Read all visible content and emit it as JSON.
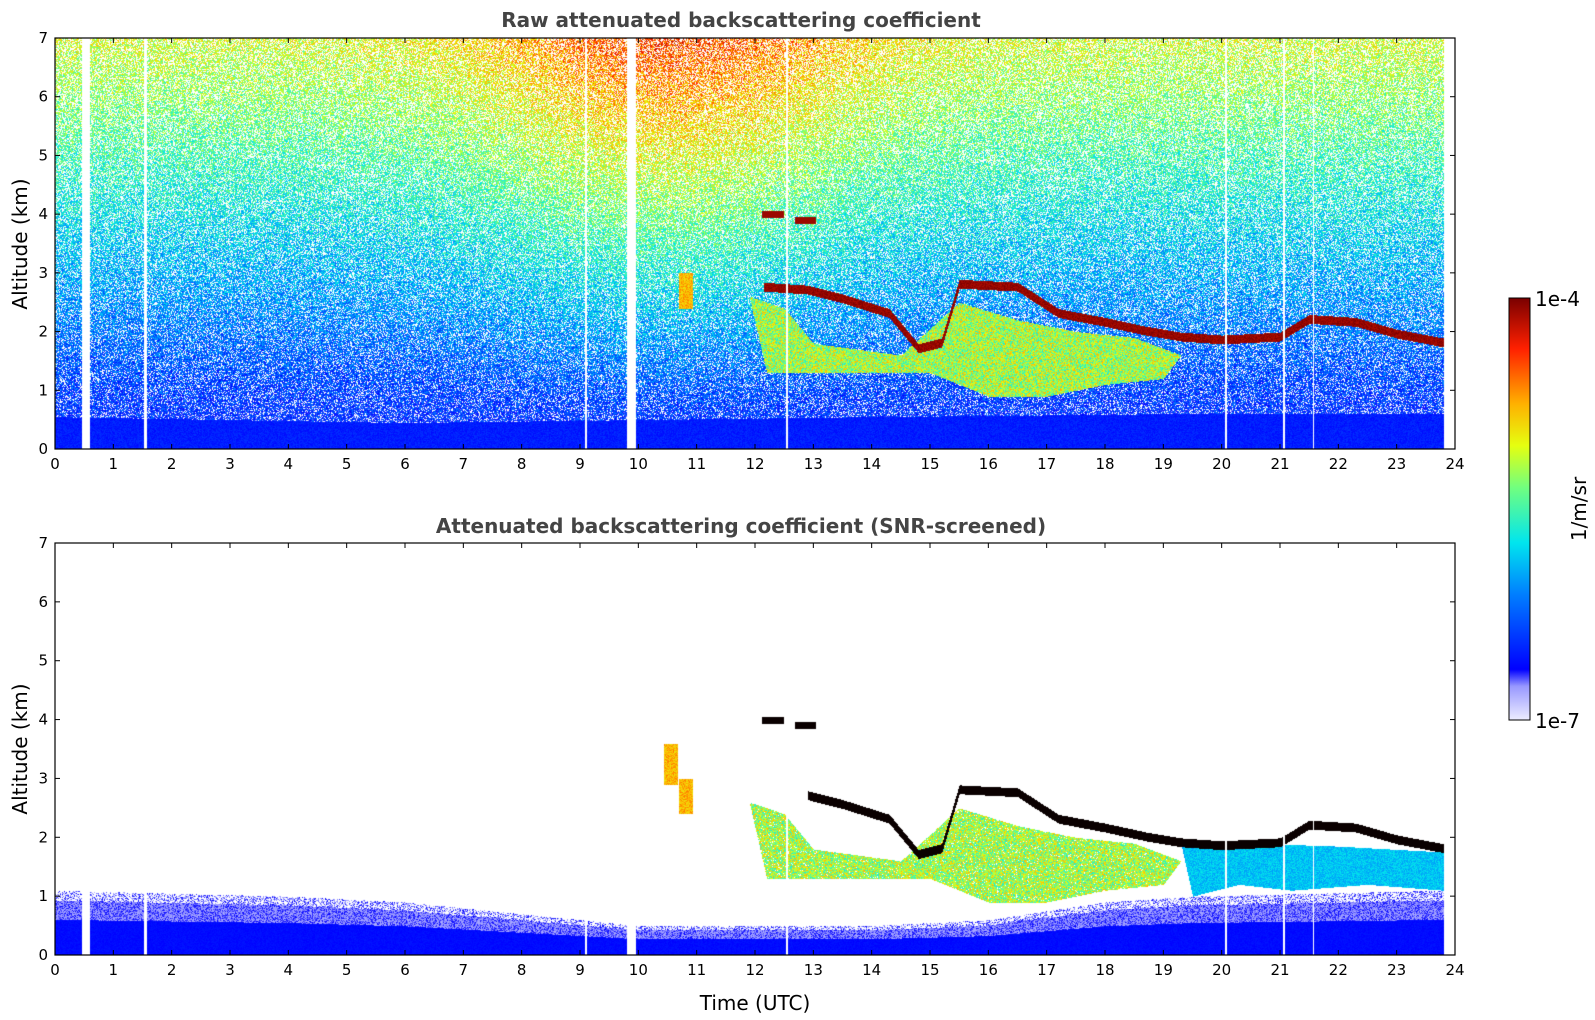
{
  "chart_data": [
    {
      "type": "heatmap",
      "title": "Raw attenuated backscattering coefficient",
      "xlabel": "",
      "ylabel": "Altitude (km)",
      "xlim": [
        0,
        24
      ],
      "ylim": [
        0,
        7
      ],
      "x_ticks": [
        "0",
        "1",
        "2",
        "3",
        "4",
        "5",
        "6",
        "7",
        "8",
        "9",
        "10",
        "11",
        "12",
        "13",
        "14",
        "15",
        "16",
        "17",
        "18",
        "19",
        "20",
        "21",
        "22",
        "23",
        "24"
      ],
      "y_ticks": [
        "0",
        "1",
        "2",
        "3",
        "4",
        "5",
        "6",
        "7"
      ],
      "data_end_hour": 23.8,
      "noise": "high",
      "background": "aerosol/noise gradient from blue near surface to yellow-red aloft",
      "gaps_hours": [
        {
          "start": 0.45,
          "end": 0.6
        },
        {
          "start": 9.8,
          "end": 9.95
        },
        {
          "start": 1.52,
          "end": 1.56
        },
        {
          "start": 9.08,
          "end": 9.11
        },
        {
          "start": 12.52,
          "end": 12.55
        },
        {
          "start": 20.05,
          "end": 20.08
        },
        {
          "start": 21.05,
          "end": 21.08
        },
        {
          "start": 21.55,
          "end": 21.58
        }
      ],
      "boundary_layer_top_km": [
        [
          0,
          0.55
        ],
        [
          6,
          0.45
        ],
        [
          10,
          0.5
        ],
        [
          14,
          0.55
        ],
        [
          19,
          0.6
        ],
        [
          23.8,
          0.6
        ]
      ],
      "cloud_layer": [
        [
          12.15,
          2.75
        ],
        [
          12.9,
          2.7
        ],
        [
          13.5,
          2.55
        ],
        [
          14.3,
          2.3
        ],
        [
          14.8,
          1.7
        ],
        [
          15.2,
          1.8
        ],
        [
          15.5,
          2.8
        ],
        [
          16.5,
          2.75
        ],
        [
          17.2,
          2.3
        ],
        [
          18,
          2.15
        ],
        [
          18.7,
          2.0
        ],
        [
          19.3,
          1.9
        ],
        [
          20,
          1.85
        ],
        [
          21,
          1.9
        ],
        [
          21.5,
          2.2
        ],
        [
          22.3,
          2.15
        ],
        [
          23.0,
          1.95
        ],
        [
          23.8,
          1.8
        ]
      ],
      "cloud_fragments": [
        {
          "x": 12.3,
          "y": 4.0
        },
        {
          "x": 12.85,
          "y": 3.9
        }
      ],
      "precip_region": [
        [
          11.9,
          2.6
        ],
        [
          12.5,
          2.4
        ],
        [
          13,
          1.8
        ],
        [
          14.5,
          1.6
        ],
        [
          15.5,
          2.5
        ],
        [
          16.5,
          2.2
        ],
        [
          17.5,
          2.0
        ],
        [
          18.5,
          1.9
        ],
        [
          19.3,
          1.6
        ],
        [
          19.0,
          1.2
        ],
        [
          18,
          1.1
        ],
        [
          17,
          0.9
        ],
        [
          16,
          0.9
        ],
        [
          15,
          1.3
        ],
        [
          13,
          1.3
        ],
        [
          12.2,
          1.3
        ]
      ],
      "virga": [
        {
          "x": 10.8,
          "y0": 2.4,
          "y1": 3.0
        }
      ]
    },
    {
      "type": "heatmap",
      "title": "Attenuated backscattering coefficient (SNR-screened)",
      "xlabel": "Time (UTC)",
      "ylabel": "Altitude (km)",
      "xlim": [
        0,
        24
      ],
      "ylim": [
        0,
        7
      ],
      "x_ticks": [
        "0",
        "1",
        "2",
        "3",
        "4",
        "5",
        "6",
        "7",
        "8",
        "9",
        "10",
        "11",
        "12",
        "13",
        "14",
        "15",
        "16",
        "17",
        "18",
        "19",
        "20",
        "21",
        "22",
        "23",
        "24"
      ],
      "y_ticks": [
        "0",
        "1",
        "2",
        "3",
        "4",
        "5",
        "6",
        "7"
      ],
      "data_end_hour": 23.8,
      "noise": "screened",
      "background": "white where signal-to-noise is low",
      "gaps_hours": [
        {
          "start": 0.45,
          "end": 0.6
        },
        {
          "start": 9.8,
          "end": 9.95
        },
        {
          "start": 1.52,
          "end": 1.56
        },
        {
          "start": 9.08,
          "end": 9.11
        },
        {
          "start": 12.52,
          "end": 12.55
        },
        {
          "start": 20.05,
          "end": 20.08
        },
        {
          "start": 21.05,
          "end": 21.08
        },
        {
          "start": 21.55,
          "end": 21.58
        }
      ],
      "boundary_layer_top_km": [
        [
          0,
          1.1
        ],
        [
          2,
          1.05
        ],
        [
          4,
          1.0
        ],
        [
          6,
          0.9
        ],
        [
          8,
          0.7
        ],
        [
          9.5,
          0.55
        ],
        [
          10,
          0.5
        ],
        [
          14,
          0.5
        ],
        [
          16,
          0.6
        ],
        [
          18,
          0.9
        ],
        [
          19.5,
          1.0
        ],
        [
          23.8,
          1.1
        ]
      ],
      "cloud_layer": [
        [
          12.9,
          2.7
        ],
        [
          13.5,
          2.55
        ],
        [
          14.3,
          2.3
        ],
        [
          14.8,
          1.7
        ],
        [
          15.2,
          1.8
        ],
        [
          15.5,
          2.8
        ],
        [
          16.5,
          2.75
        ],
        [
          17.2,
          2.3
        ],
        [
          18,
          2.15
        ],
        [
          18.7,
          2.0
        ],
        [
          19.3,
          1.9
        ],
        [
          20,
          1.85
        ],
        [
          21,
          1.9
        ],
        [
          21.5,
          2.2
        ],
        [
          22.3,
          2.15
        ],
        [
          23.0,
          1.95
        ],
        [
          23.8,
          1.8
        ]
      ],
      "cloud_fragments": [
        {
          "x": 12.3,
          "y": 4.0
        },
        {
          "x": 12.85,
          "y": 3.9
        }
      ],
      "precip_region": [
        [
          11.9,
          2.6
        ],
        [
          12.5,
          2.4
        ],
        [
          13,
          1.8
        ],
        [
          14.5,
          1.6
        ],
        [
          15.5,
          2.5
        ],
        [
          16.5,
          2.2
        ],
        [
          17.5,
          2.0
        ],
        [
          18.5,
          1.9
        ],
        [
          19.3,
          1.6
        ],
        [
          19.0,
          1.2
        ],
        [
          18,
          1.1
        ],
        [
          17,
          0.9
        ],
        [
          16,
          0.9
        ],
        [
          15,
          1.3
        ],
        [
          13,
          1.3
        ],
        [
          12.2,
          1.3
        ]
      ],
      "blue_region": [
        [
          19.3,
          1.9
        ],
        [
          20.5,
          1.9
        ],
        [
          22,
          1.85
        ],
        [
          23.8,
          1.75
        ],
        [
          23.8,
          1.1
        ],
        [
          22.5,
          1.2
        ],
        [
          21.2,
          1.1
        ],
        [
          20.3,
          1.2
        ],
        [
          19.5,
          1.0
        ]
      ],
      "virga": [
        {
          "x": 10.8,
          "y0": 2.4,
          "y1": 3.0
        },
        {
          "x": 10.55,
          "y0": 2.9,
          "y1": 3.6
        }
      ]
    }
  ],
  "colorbar": {
    "label": "1/m/sr",
    "max_label": "1e-4",
    "min_label": "1e-7",
    "scale": "log",
    "colormap": "jet"
  }
}
